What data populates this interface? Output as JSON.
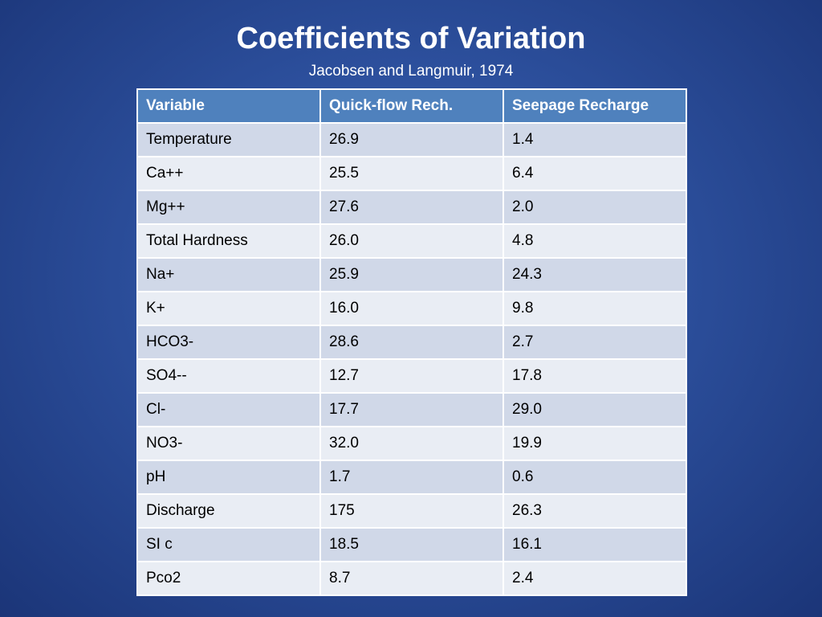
{
  "slide": {
    "title": "Coefficients of Variation",
    "subtitle": "Jacobsen and Langmuir, 1974"
  },
  "table": {
    "headers": [
      "Variable",
      "Quick-flow Rech.",
      "Seepage Recharge"
    ],
    "rows": [
      [
        "Temperature",
        "26.9",
        "1.4"
      ],
      [
        "Ca++",
        "25.5",
        "6.4"
      ],
      [
        "Mg++",
        "27.6",
        "2.0"
      ],
      [
        "Total Hardness",
        "26.0",
        "4.8"
      ],
      [
        "Na+",
        "25.9",
        "24.3"
      ],
      [
        "K+",
        "16.0",
        "9.8"
      ],
      [
        "HCO3-",
        "28.6",
        "2.7"
      ],
      [
        "SO4--",
        "12.7",
        "17.8"
      ],
      [
        "Cl-",
        "17.7",
        "29.0"
      ],
      [
        "NO3-",
        "32.0",
        "19.9"
      ],
      [
        "pH",
        "1.7",
        "0.6"
      ],
      [
        "Discharge",
        "175",
        "26.3"
      ],
      [
        "SI c",
        "18.5",
        "16.1"
      ],
      [
        "Pco2",
        "8.7",
        "2.4"
      ]
    ]
  },
  "colors": {
    "background": "#2c4f9c",
    "header_fill": "#4f81bd",
    "row_fill_dark": "#d0d8e8",
    "row_fill_light": "#e9edf4"
  }
}
